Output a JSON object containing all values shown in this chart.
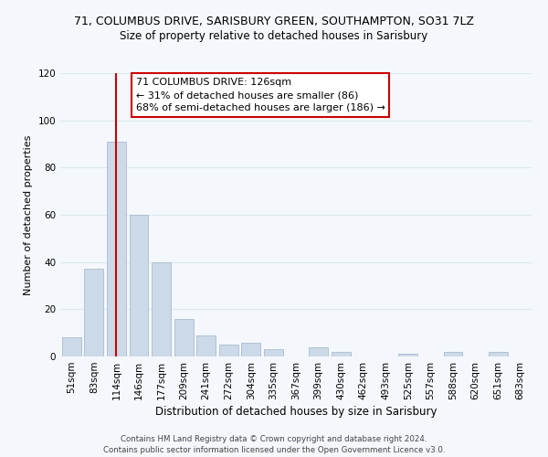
{
  "title_line1": "71, COLUMBUS DRIVE, SARISBURY GREEN, SOUTHAMPTON, SO31 7LZ",
  "title_line2": "Size of property relative to detached houses in Sarisbury",
  "xlabel": "Distribution of detached houses by size in Sarisbury",
  "ylabel": "Number of detached properties",
  "bar_labels": [
    "51sqm",
    "83sqm",
    "114sqm",
    "146sqm",
    "177sqm",
    "209sqm",
    "241sqm",
    "272sqm",
    "304sqm",
    "335sqm",
    "367sqm",
    "399sqm",
    "430sqm",
    "462sqm",
    "493sqm",
    "525sqm",
    "557sqm",
    "588sqm",
    "620sqm",
    "651sqm",
    "683sqm"
  ],
  "bar_values": [
    8,
    37,
    91,
    60,
    40,
    16,
    9,
    5,
    6,
    3,
    0,
    4,
    2,
    0,
    0,
    1,
    0,
    2,
    0,
    2,
    0
  ],
  "bar_color": "#ccd9e8",
  "bar_edge_color": "#aabccc",
  "property_line_x": 2.0,
  "ylim": [
    0,
    120
  ],
  "yticks": [
    0,
    20,
    40,
    60,
    80,
    100,
    120
  ],
  "annotation_title": "71 COLUMBUS DRIVE: 126sqm",
  "annotation_line1": "← 31% of detached houses are smaller (86)",
  "annotation_line2": "68% of semi-detached houses are larger (186) →",
  "annotation_box_color": "#ffffff",
  "annotation_box_edge": "#cc0000",
  "footer_line1": "Contains HM Land Registry data © Crown copyright and database right 2024.",
  "footer_line2": "Contains public sector information licensed under the Open Government Licence v3.0.",
  "red_line_color": "#cc0000",
  "grid_color": "#dce8f0",
  "background_color": "#f4f8fc",
  "title1_fontsize": 9.0,
  "title2_fontsize": 8.5,
  "xlabel_fontsize": 8.5,
  "ylabel_fontsize": 8.0,
  "tick_fontsize": 7.5,
  "ann_fontsize": 8.0,
  "footer_fontsize": 6.2
}
